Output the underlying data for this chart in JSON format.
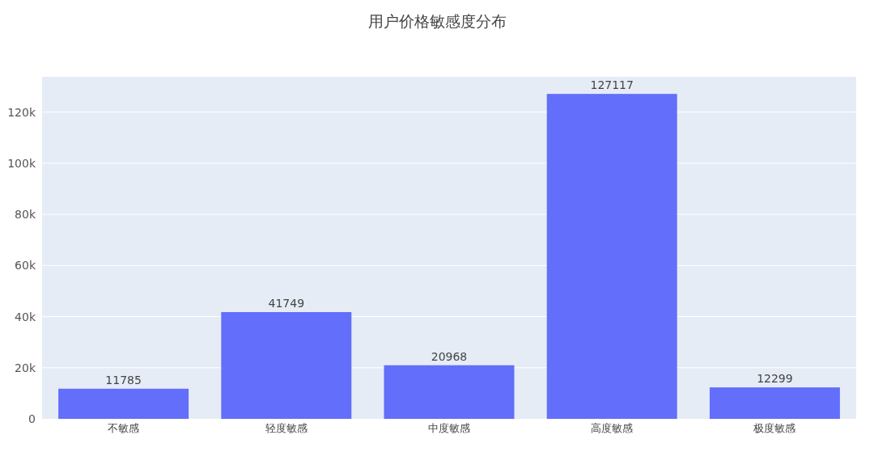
{
  "chart_data": {
    "type": "bar",
    "title": "用户价格敏感度分布",
    "categories": [
      "不敏感",
      "轻度敏感",
      "中度敏感",
      "高度敏感",
      "极度敏感"
    ],
    "values": [
      11785,
      41749,
      20968,
      127117,
      12299
    ],
    "color": "#636efa",
    "ylim": [
      0,
      133800
    ],
    "yticks": [
      0,
      {
        "value": 20000,
        "label": "20k"
      },
      {
        "value": 40000,
        "label": "40k"
      },
      {
        "value": 60000,
        "label": "60k"
      },
      {
        "value": 80000,
        "label": "80k"
      },
      {
        "value": 100000,
        "label": "100k"
      },
      {
        "value": 120000,
        "label": "120k"
      }
    ],
    "grid": "y",
    "data_labels": true
  }
}
